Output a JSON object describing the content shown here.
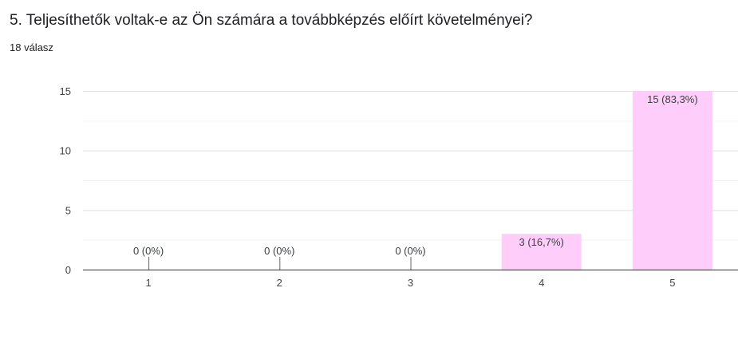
{
  "question": {
    "title": "5. Teljesíthetők voltak-e az Ön számára a továbbképzés előírt követelményei?",
    "response_count": "18 válasz"
  },
  "colors": {
    "bar_fill": "#ffcdf9",
    "gridline": "#e0e0e0",
    "axis": "#333333"
  },
  "chart_data": {
    "type": "bar",
    "categories": [
      "1",
      "2",
      "3",
      "4",
      "5"
    ],
    "values": [
      0,
      0,
      0,
      3,
      15
    ],
    "data_labels": [
      "0 (0%)",
      "0 (0%)",
      "0 (0%)",
      "3 (16,7%)",
      "15 (83,3%)"
    ],
    "y_ticks": [
      0,
      5,
      10,
      15
    ],
    "ylim": [
      0,
      15
    ],
    "grid": true,
    "title": "",
    "xlabel": "",
    "ylabel": ""
  }
}
